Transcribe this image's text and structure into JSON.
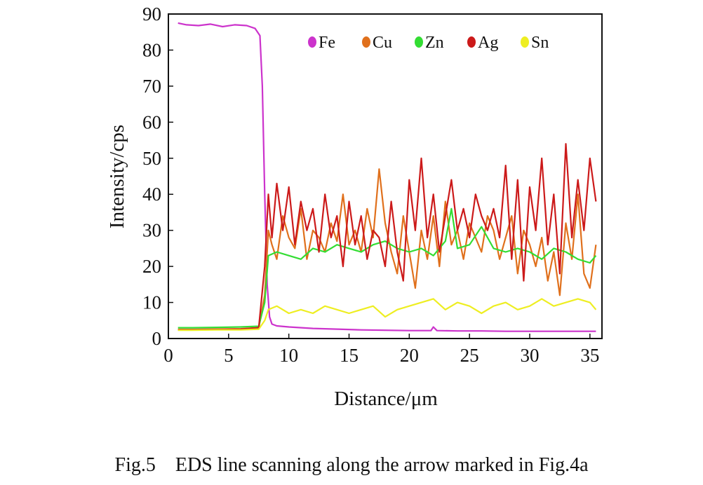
{
  "caption": "Fig.5    EDS line scanning along the arrow marked in Fig.4a",
  "chart_data": {
    "type": "line",
    "title": "",
    "xlabel": "Distance/μm",
    "ylabel": "Intensity/cps",
    "xlim": [
      0,
      36
    ],
    "ylim": [
      0,
      90
    ],
    "xticks": [
      0,
      5,
      10,
      15,
      20,
      25,
      30,
      35
    ],
    "yticks": [
      0,
      10,
      20,
      30,
      40,
      50,
      60,
      70,
      80,
      90
    ],
    "legend_position": "top-right",
    "grid": false,
    "series": [
      {
        "name": "Fe",
        "color": "#cc33cc",
        "x": [
          0.8,
          1.5,
          2.5,
          3.5,
          4.5,
          5.5,
          6.5,
          7.2,
          7.6,
          7.8,
          8.0,
          8.2,
          8.4,
          8.6,
          9.0,
          10,
          12,
          14,
          16,
          18,
          20,
          21.8,
          22,
          22.3,
          24,
          26,
          28,
          30,
          32,
          34,
          35.5
        ],
        "y": [
          87.5,
          87,
          86.8,
          87.2,
          86.5,
          87,
          86.8,
          86,
          84,
          70,
          40,
          15,
          6,
          4,
          3.5,
          3.2,
          2.8,
          2.6,
          2.4,
          2.3,
          2.2,
          2.2,
          3.2,
          2.2,
          2.1,
          2.1,
          2,
          2,
          2,
          2,
          2
        ]
      },
      {
        "name": "Cu",
        "color": "#e0701c",
        "x": [
          0.8,
          2,
          4,
          6,
          7.5,
          8.0,
          8.3,
          8.6,
          9.0,
          9.5,
          10,
          10.5,
          11,
          11.5,
          12,
          12.5,
          13,
          13.5,
          14,
          14.5,
          15,
          15.5,
          16,
          16.5,
          17,
          17.5,
          18,
          18.5,
          19,
          19.5,
          20,
          20.5,
          21,
          21.5,
          22,
          22.5,
          23,
          23.5,
          24,
          24.5,
          25,
          25.5,
          26,
          26.5,
          27,
          27.5,
          28,
          28.5,
          29,
          29.5,
          30,
          30.5,
          31,
          31.5,
          32,
          32.5,
          33,
          33.5,
          34,
          34.5,
          35,
          35.5
        ],
        "y": [
          2.5,
          2.5,
          2.6,
          2.7,
          3,
          12,
          30,
          26,
          22,
          34,
          28,
          25,
          36,
          22,
          30,
          28,
          24,
          32,
          27,
          40,
          26,
          30,
          24,
          36,
          28,
          47,
          32,
          24,
          18,
          34,
          24,
          14,
          30,
          22,
          34,
          20,
          38,
          26,
          30,
          22,
          32,
          28,
          24,
          34,
          30,
          22,
          28,
          34,
          18,
          30,
          26,
          20,
          28,
          16,
          24,
          12,
          32,
          22,
          40,
          18,
          14,
          26
        ]
      },
      {
        "name": "Zn",
        "color": "#33dd33",
        "x": [
          0.8,
          2,
          4,
          6,
          7.5,
          8.0,
          8.3,
          9,
          10,
          11,
          12,
          13,
          14,
          15,
          16,
          17,
          18,
          19,
          20,
          21,
          22,
          23,
          23.5,
          24,
          25,
          26,
          27,
          28,
          29,
          30,
          31,
          32,
          33,
          34,
          35,
          35.5
        ],
        "y": [
          3,
          3,
          3.1,
          3.2,
          3.4,
          10,
          23,
          24,
          23,
          22,
          25,
          24,
          26,
          25,
          24,
          26,
          27,
          25,
          24,
          25,
          23,
          27,
          36,
          25,
          26,
          31,
          25,
          24,
          25,
          24,
          22,
          25,
          24,
          22,
          21,
          23
        ]
      },
      {
        "name": "Ag",
        "color": "#cc1a1a",
        "x": [
          0.8,
          2,
          4,
          6,
          7.5,
          8.0,
          8.3,
          8.6,
          9.0,
          9.5,
          10,
          10.5,
          11,
          11.5,
          12,
          12.5,
          13,
          13.5,
          14,
          14.5,
          15,
          15.5,
          16,
          16.5,
          17,
          17.5,
          18,
          18.5,
          19,
          19.5,
          20,
          20.5,
          21,
          21.5,
          22,
          22.5,
          23,
          23.5,
          24,
          24.5,
          25,
          25.5,
          26,
          26.5,
          27,
          27.5,
          28,
          28.5,
          29,
          29.5,
          30,
          30.5,
          31,
          31.5,
          32,
          32.5,
          33,
          33.5,
          34,
          34.5,
          35,
          35.5
        ],
        "y": [
          2.4,
          2.4,
          2.5,
          2.6,
          3,
          20,
          40,
          28,
          43,
          30,
          42,
          26,
          38,
          30,
          36,
          24,
          40,
          28,
          34,
          20,
          38,
          26,
          34,
          22,
          30,
          28,
          20,
          38,
          24,
          16,
          44,
          30,
          50,
          28,
          40,
          24,
          34,
          44,
          30,
          36,
          28,
          40,
          34,
          30,
          36,
          28,
          48,
          22,
          44,
          16,
          42,
          30,
          50,
          26,
          40,
          18,
          54,
          28,
          44,
          30,
          50,
          38
        ]
      },
      {
        "name": "Sn",
        "color": "#eeee22",
        "x": [
          0.8,
          2,
          4,
          6,
          7.5,
          8.0,
          8.3,
          9,
          10,
          11,
          12,
          13,
          14,
          15,
          16,
          17,
          18,
          19,
          20,
          21,
          22,
          23,
          24,
          25,
          26,
          27,
          28,
          29,
          30,
          31,
          32,
          33,
          34,
          35,
          35.5
        ],
        "y": [
          2.3,
          2.3,
          2.4,
          2.4,
          2.6,
          5,
          8,
          9,
          7,
          8,
          7,
          9,
          8,
          7,
          8,
          9,
          6,
          8,
          9,
          10,
          11,
          8,
          10,
          9,
          7,
          9,
          10,
          8,
          9,
          11,
          9,
          10,
          11,
          10,
          8
        ]
      }
    ]
  }
}
